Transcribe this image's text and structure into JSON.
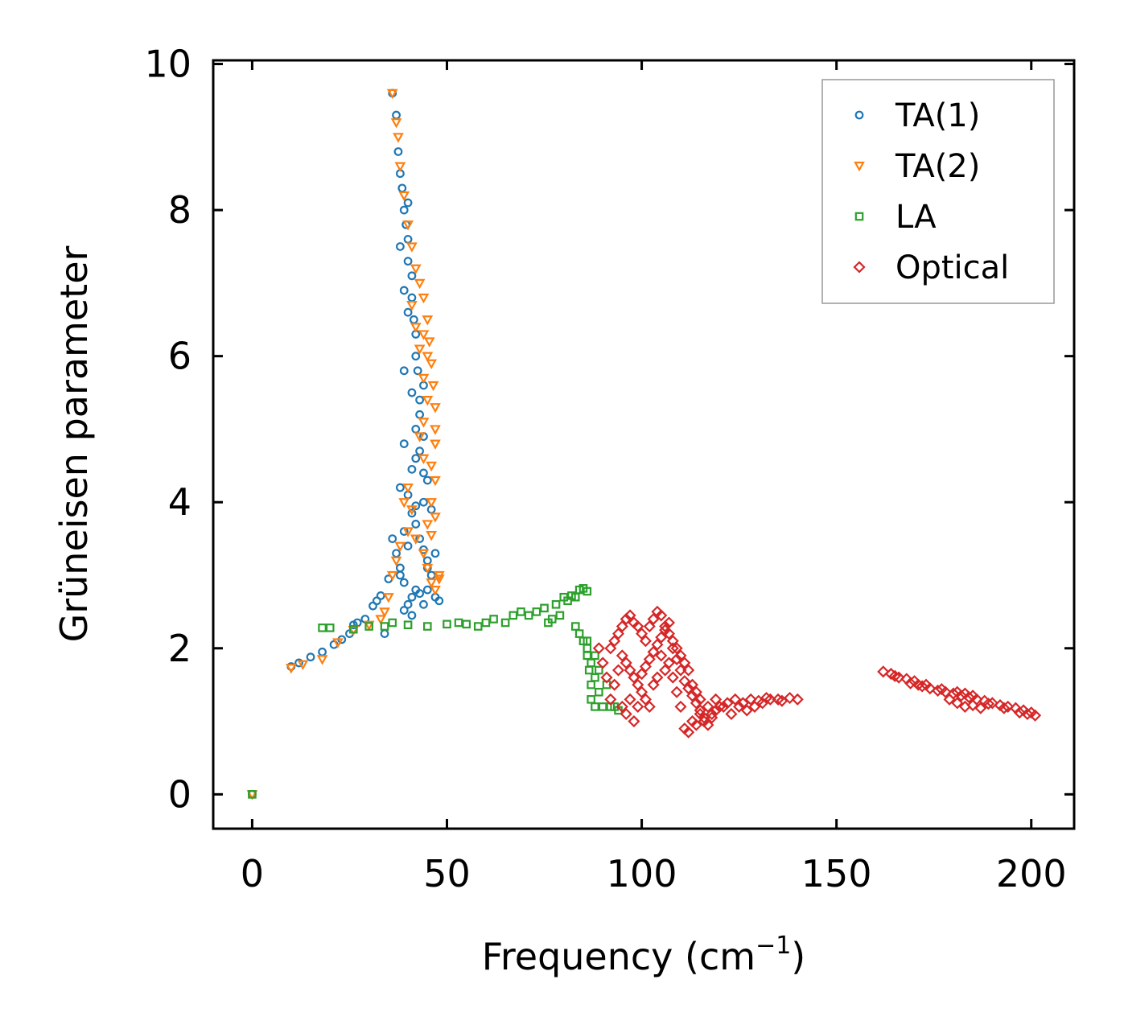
{
  "chart_data": {
    "type": "scatter",
    "title": "",
    "xlabel": "Frequency (cm",
    "xlabel_sup": "−1",
    "xlabel_suffix": ")",
    "ylabel": "Grüneisen parameter",
    "xlim": [
      -10,
      211
    ],
    "ylim": [
      -0.47,
      10.05
    ],
    "xticks": [
      0,
      50,
      100,
      150,
      200
    ],
    "xtick_labels": [
      "0",
      "50",
      "100",
      "150",
      "200"
    ],
    "yticks": [
      0,
      2,
      4,
      6,
      8,
      10
    ],
    "ytick_labels": [
      "0",
      "2",
      "4",
      "6",
      "8",
      "10"
    ],
    "legend_position": "top-right",
    "series": [
      {
        "name": "TA(1)",
        "marker": "circle",
        "color": "#1f77b4",
        "points": [
          [
            0,
            0
          ],
          [
            10,
            1.75
          ],
          [
            12,
            1.8
          ],
          [
            15,
            1.88
          ],
          [
            18,
            1.95
          ],
          [
            21,
            2.05
          ],
          [
            23,
            2.12
          ],
          [
            25,
            2.2
          ],
          [
            26,
            2.32
          ],
          [
            27,
            2.35
          ],
          [
            29,
            2.4
          ],
          [
            31,
            2.58
          ],
          [
            32,
            2.65
          ],
          [
            33,
            2.72
          ],
          [
            34,
            2.2
          ],
          [
            35,
            2.95
          ],
          [
            36,
            3.5
          ],
          [
            37,
            3.3
          ],
          [
            38,
            3.1
          ],
          [
            39,
            2.9
          ],
          [
            40,
            2.6
          ],
          [
            41,
            2.7
          ],
          [
            42,
            2.8
          ],
          [
            43,
            2.75
          ],
          [
            44,
            2.6
          ],
          [
            45,
            3.1
          ],
          [
            46,
            3.0
          ],
          [
            47,
            3.3
          ],
          [
            48,
            2.65
          ],
          [
            36,
            9.6
          ],
          [
            37,
            9.3
          ],
          [
            37.5,
            8.8
          ],
          [
            38,
            8.5
          ],
          [
            38.5,
            8.3
          ],
          [
            39,
            8.0
          ],
          [
            39.5,
            7.8
          ],
          [
            40,
            7.6
          ],
          [
            40,
            7.3
          ],
          [
            41,
            7.1
          ],
          [
            41,
            6.8
          ],
          [
            41.5,
            6.5
          ],
          [
            42,
            6.3
          ],
          [
            42,
            6.0
          ],
          [
            42.5,
            5.8
          ],
          [
            41,
            5.5
          ],
          [
            43,
            5.2
          ],
          [
            42,
            5.0
          ],
          [
            44,
            4.9
          ],
          [
            43,
            4.7
          ],
          [
            42,
            4.6
          ],
          [
            44,
            4.4
          ],
          [
            45,
            4.3
          ],
          [
            40,
            4.1
          ],
          [
            44,
            4.0
          ],
          [
            46,
            3.9
          ],
          [
            41,
            3.85
          ],
          [
            42,
            3.7
          ],
          [
            43,
            3.5
          ],
          [
            39,
            3.6
          ],
          [
            40,
            3.4
          ],
          [
            45,
            3.2
          ],
          [
            38,
            3.0
          ],
          [
            44,
            3.35
          ],
          [
            39,
            5.8
          ],
          [
            40,
            6.6
          ],
          [
            39,
            6.9
          ],
          [
            38,
            7.5
          ],
          [
            40,
            8.1
          ],
          [
            44,
            5.6
          ],
          [
            43,
            5.4
          ],
          [
            38,
            4.2
          ],
          [
            39,
            4.8
          ],
          [
            41,
            4.45
          ],
          [
            42,
            3.95
          ],
          [
            45,
            2.8
          ],
          [
            47,
            2.7
          ],
          [
            39,
            2.52
          ],
          [
            41,
            2.45
          ]
        ]
      },
      {
        "name": "TA(2)",
        "marker": "triangle",
        "color": "#ff7f0e",
        "points": [
          [
            0,
            0
          ],
          [
            10,
            1.73
          ],
          [
            13,
            1.78
          ],
          [
            18,
            1.85
          ],
          [
            22,
            2.08
          ],
          [
            26,
            2.25
          ],
          [
            30,
            2.32
          ],
          [
            33,
            2.4
          ],
          [
            34,
            2.5
          ],
          [
            35,
            2.7
          ],
          [
            36,
            3.0
          ],
          [
            37,
            3.2
          ],
          [
            38,
            3.4
          ],
          [
            40,
            3.6
          ],
          [
            42,
            3.5
          ],
          [
            44,
            3.3
          ],
          [
            45,
            3.1
          ],
          [
            46,
            2.9
          ],
          [
            47,
            2.8
          ],
          [
            48,
            2.95
          ],
          [
            48,
            3.0
          ],
          [
            36,
            9.6
          ],
          [
            37,
            9.2
          ],
          [
            37.5,
            9.0
          ],
          [
            38,
            8.6
          ],
          [
            39,
            8.2
          ],
          [
            40,
            7.8
          ],
          [
            41,
            7.5
          ],
          [
            42,
            7.2
          ],
          [
            43,
            7.0
          ],
          [
            44,
            6.8
          ],
          [
            45,
            6.5
          ],
          [
            45.5,
            6.2
          ],
          [
            46,
            5.9
          ],
          [
            46.5,
            5.6
          ],
          [
            47,
            5.3
          ],
          [
            47,
            5.0
          ],
          [
            47,
            4.8
          ],
          [
            46,
            4.5
          ],
          [
            47,
            4.3
          ],
          [
            46,
            4.0
          ],
          [
            47,
            3.8
          ],
          [
            46,
            3.55
          ],
          [
            44,
            4.6
          ],
          [
            43,
            4.9
          ],
          [
            44,
            5.1
          ],
          [
            45,
            5.4
          ],
          [
            44,
            5.7
          ],
          [
            43,
            6.1
          ],
          [
            42,
            6.4
          ],
          [
            41,
            6.7
          ],
          [
            40,
            4.2
          ],
          [
            39,
            4.0
          ],
          [
            41,
            3.9
          ],
          [
            45,
            3.7
          ],
          [
            45,
            6.0
          ],
          [
            44,
            6.3
          ]
        ]
      },
      {
        "name": "LA",
        "marker": "square",
        "color": "#2ca02c",
        "points": [
          [
            0,
            0
          ],
          [
            18,
            2.28
          ],
          [
            20,
            2.28
          ],
          [
            26,
            2.26
          ],
          [
            30,
            2.3
          ],
          [
            34,
            2.3
          ],
          [
            36,
            2.35
          ],
          [
            40,
            2.32
          ],
          [
            45,
            2.3
          ],
          [
            50,
            2.33
          ],
          [
            53,
            2.35
          ],
          [
            55,
            2.33
          ],
          [
            58,
            2.3
          ],
          [
            60,
            2.35
          ],
          [
            62,
            2.4
          ],
          [
            65,
            2.35
          ],
          [
            67,
            2.45
          ],
          [
            69,
            2.5
          ],
          [
            71,
            2.45
          ],
          [
            73,
            2.5
          ],
          [
            75,
            2.55
          ],
          [
            76,
            2.35
          ],
          [
            77,
            2.4
          ],
          [
            78,
            2.6
          ],
          [
            79,
            2.45
          ],
          [
            80,
            2.7
          ],
          [
            81,
            2.65
          ],
          [
            82,
            2.72
          ],
          [
            83,
            2.7
          ],
          [
            84,
            2.8
          ],
          [
            85,
            2.82
          ],
          [
            86,
            2.78
          ],
          [
            86,
            2.1
          ],
          [
            86,
            1.9
          ],
          [
            86.5,
            1.7
          ],
          [
            87,
            1.5
          ],
          [
            87,
            1.3
          ],
          [
            88,
            1.2
          ],
          [
            88,
            1.6
          ],
          [
            89,
            1.4
          ],
          [
            90,
            1.2
          ],
          [
            91,
            1.5
          ],
          [
            92,
            1.2
          ],
          [
            93,
            1.2
          ],
          [
            94,
            1.15
          ],
          [
            83,
            2.3
          ],
          [
            84,
            2.2
          ],
          [
            85,
            2.1
          ],
          [
            86,
            2.0
          ],
          [
            87,
            1.8
          ],
          [
            88,
            1.9
          ],
          [
            89,
            1.7
          ]
        ]
      },
      {
        "name": "Optical",
        "marker": "diamond",
        "color": "#d62728",
        "points": [
          [
            89,
            2.0
          ],
          [
            90,
            1.8
          ],
          [
            91,
            1.6
          ],
          [
            92,
            1.3
          ],
          [
            93,
            1.5
          ],
          [
            94,
            1.7
          ],
          [
            95,
            1.2
          ],
          [
            96,
            1.1
          ],
          [
            97,
            1.3
          ],
          [
            98,
            1.0
          ],
          [
            99,
            1.2
          ],
          [
            100,
            1.4
          ],
          [
            101,
            1.3
          ],
          [
            102,
            1.2
          ],
          [
            103,
            1.5
          ],
          [
            104,
            1.6
          ],
          [
            105,
            1.9
          ],
          [
            106,
            1.7
          ],
          [
            107,
            1.8
          ],
          [
            108,
            1.6
          ],
          [
            109,
            1.4
          ],
          [
            110,
            1.2
          ],
          [
            111,
            0.9
          ],
          [
            112,
            0.85
          ],
          [
            113,
            1.0
          ],
          [
            114,
            0.95
          ],
          [
            115,
            1.1
          ],
          [
            116,
            1.0
          ],
          [
            117,
            1.2
          ],
          [
            118,
            1.1
          ],
          [
            119,
            1.3
          ],
          [
            120,
            1.2
          ],
          [
            122,
            1.25
          ],
          [
            124,
            1.3
          ],
          [
            126,
            1.25
          ],
          [
            128,
            1.3
          ],
          [
            130,
            1.28
          ],
          [
            132,
            1.32
          ],
          [
            135,
            1.3
          ],
          [
            138,
            1.32
          ],
          [
            140,
            1.3
          ],
          [
            92,
            2.0
          ],
          [
            93,
            2.1
          ],
          [
            94,
            2.2
          ],
          [
            95,
            2.3
          ],
          [
            96,
            2.4
          ],
          [
            97,
            2.45
          ],
          [
            98,
            2.35
          ],
          [
            99,
            2.3
          ],
          [
            100,
            2.2
          ],
          [
            101,
            2.1
          ],
          [
            102,
            2.3
          ],
          [
            103,
            2.4
          ],
          [
            104,
            2.5
          ],
          [
            105,
            2.45
          ],
          [
            106,
            2.3
          ],
          [
            107,
            2.2
          ],
          [
            108,
            2.1
          ],
          [
            109,
            2.0
          ],
          [
            110,
            1.9
          ],
          [
            111,
            1.8
          ],
          [
            112,
            1.7
          ],
          [
            113,
            1.5
          ],
          [
            114,
            1.4
          ],
          [
            115,
            1.3
          ],
          [
            95,
            1.9
          ],
          [
            96,
            1.8
          ],
          [
            97,
            1.7
          ],
          [
            98,
            1.6
          ],
          [
            99,
            1.5
          ],
          [
            100,
            1.65
          ],
          [
            101,
            1.75
          ],
          [
            102,
            1.85
          ],
          [
            103,
            1.95
          ],
          [
            104,
            2.05
          ],
          [
            105,
            2.15
          ],
          [
            106,
            2.25
          ],
          [
            107,
            2.35
          ],
          [
            108,
            2.0
          ],
          [
            109,
            1.85
          ],
          [
            110,
            1.7
          ],
          [
            111,
            1.55
          ],
          [
            112,
            1.45
          ],
          [
            113,
            1.35
          ],
          [
            114,
            1.25
          ],
          [
            115,
            1.15
          ],
          [
            116,
            1.05
          ],
          [
            117,
            0.95
          ],
          [
            118,
            1.05
          ],
          [
            119,
            1.15
          ],
          [
            121,
            1.2
          ],
          [
            123,
            1.1
          ],
          [
            125,
            1.2
          ],
          [
            127,
            1.15
          ],
          [
            129,
            1.2
          ],
          [
            131,
            1.25
          ],
          [
            133,
            1.3
          ],
          [
            136,
            1.28
          ],
          [
            162,
            1.68
          ],
          [
            164,
            1.65
          ],
          [
            166,
            1.6
          ],
          [
            168,
            1.58
          ],
          [
            170,
            1.55
          ],
          [
            171,
            1.5
          ],
          [
            172,
            1.48
          ],
          [
            174,
            1.45
          ],
          [
            176,
            1.42
          ],
          [
            178,
            1.4
          ],
          [
            180,
            1.38
          ],
          [
            182,
            1.35
          ],
          [
            184,
            1.33
          ],
          [
            186,
            1.3
          ],
          [
            188,
            1.28
          ],
          [
            190,
            1.25
          ],
          [
            192,
            1.22
          ],
          [
            194,
            1.2
          ],
          [
            196,
            1.18
          ],
          [
            198,
            1.15
          ],
          [
            200,
            1.12
          ],
          [
            201,
            1.08
          ],
          [
            165,
            1.62
          ],
          [
            169,
            1.52
          ],
          [
            173,
            1.5
          ],
          [
            177,
            1.44
          ],
          [
            181,
            1.4
          ],
          [
            183,
            1.38
          ],
          [
            185,
            1.35
          ],
          [
            179,
            1.3
          ],
          [
            181,
            1.25
          ],
          [
            183,
            1.2
          ],
          [
            185,
            1.22
          ],
          [
            187,
            1.18
          ],
          [
            189,
            1.24
          ],
          [
            193,
            1.18
          ],
          [
            197,
            1.12
          ],
          [
            199,
            1.1
          ]
        ]
      }
    ]
  }
}
